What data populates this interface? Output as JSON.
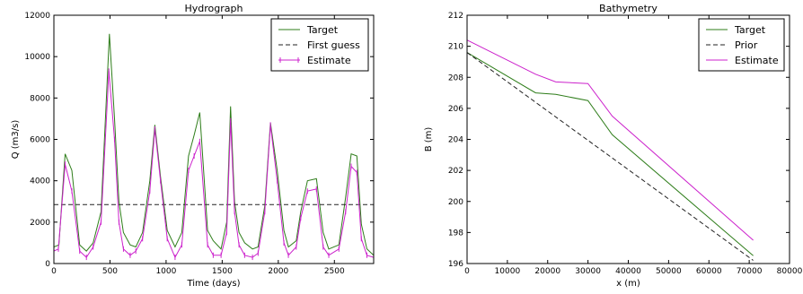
{
  "chart_data": [
    {
      "type": "line",
      "title": "Hydrograph",
      "xlabel": "Time (days)",
      "ylabel": "Q (m3/s)",
      "xlim": [
        0,
        2850
      ],
      "ylim": [
        0,
        12000
      ],
      "xticks": [
        0,
        500,
        1000,
        1500,
        2000,
        2500
      ],
      "yticks": [
        0,
        2000,
        4000,
        6000,
        8000,
        10000,
        12000
      ],
      "legend_position": "top-right",
      "grid": false,
      "series": [
        {
          "name": "Target",
          "color": "#2e7d1a",
          "style": "solid",
          "marker": "none",
          "x": [
            0,
            45,
            100,
            160,
            230,
            290,
            350,
            420,
            495,
            540,
            580,
            620,
            680,
            730,
            790,
            855,
            900,
            950,
            1010,
            1080,
            1140,
            1200,
            1250,
            1300,
            1370,
            1420,
            1490,
            1540,
            1575,
            1610,
            1650,
            1700,
            1770,
            1820,
            1880,
            1930,
            1990,
            2050,
            2090,
            2160,
            2200,
            2260,
            2340,
            2400,
            2450,
            2540,
            2600,
            2650,
            2700,
            2740,
            2790,
            2850
          ],
          "y": [
            800,
            900,
            5300,
            4500,
            900,
            600,
            1000,
            2500,
            11100,
            7000,
            3000,
            1500,
            900,
            800,
            1500,
            4000,
            6700,
            4200,
            1600,
            800,
            1500,
            5200,
            6200,
            7300,
            1600,
            1100,
            700,
            2000,
            7600,
            3000,
            1500,
            1000,
            700,
            800,
            2800,
            6800,
            4500,
            1600,
            800,
            1100,
            2500,
            4000,
            4100,
            1500,
            700,
            900,
            3200,
            5300,
            5200,
            1900,
            700,
            400
          ]
        },
        {
          "name": "First guess",
          "color": "#222222",
          "style": "dashed",
          "marker": "none",
          "x": [
            0,
            2850
          ],
          "y": [
            2850,
            2850
          ]
        },
        {
          "name": "Estimate",
          "color": "#cc22cc",
          "style": "solid",
          "marker": "vline",
          "x": [
            0,
            40,
            100,
            160,
            230,
            290,
            350,
            420,
            490,
            540,
            580,
            620,
            680,
            730,
            790,
            855,
            900,
            950,
            1010,
            1080,
            1140,
            1200,
            1250,
            1300,
            1370,
            1420,
            1490,
            1540,
            1575,
            1610,
            1650,
            1700,
            1770,
            1820,
            1880,
            1930,
            1990,
            2050,
            2090,
            2160,
            2200,
            2260,
            2340,
            2400,
            2450,
            2540,
            2600,
            2650,
            2700,
            2740,
            2790,
            2850
          ],
          "y": [
            600,
            700,
            4800,
            3500,
            600,
            300,
            800,
            2000,
            9300,
            6000,
            2000,
            700,
            400,
            600,
            1200,
            3500,
            6500,
            4000,
            1200,
            300,
            900,
            4500,
            5200,
            5900,
            900,
            400,
            400,
            1500,
            6900,
            2500,
            900,
            400,
            300,
            500,
            2500,
            6700,
            4000,
            1000,
            400,
            800,
            2200,
            3500,
            3600,
            800,
            400,
            700,
            2500,
            4700,
            4400,
            1200,
            400,
            300
          ]
        }
      ]
    },
    {
      "type": "line",
      "title": "Bathymetry",
      "xlabel": "x (m)",
      "ylabel": "B (m)",
      "xlim": [
        0,
        80000
      ],
      "ylim": [
        196,
        212
      ],
      "xticks": [
        0,
        10000,
        20000,
        30000,
        40000,
        50000,
        60000,
        70000,
        80000
      ],
      "yticks": [
        196,
        198,
        200,
        202,
        204,
        206,
        208,
        210,
        212
      ],
      "legend_position": "top-right",
      "grid": false,
      "series": [
        {
          "name": "Target",
          "color": "#2e7d1a",
          "style": "solid",
          "marker": "none",
          "x": [
            0,
            17000,
            22000,
            30000,
            36000,
            71000
          ],
          "y": [
            209.6,
            207.0,
            206.9,
            206.5,
            204.3,
            196.5
          ]
        },
        {
          "name": "Prior",
          "color": "#222222",
          "style": "dashed",
          "marker": "none",
          "x": [
            0,
            71000
          ],
          "y": [
            209.6,
            196.2
          ]
        },
        {
          "name": "Estimate",
          "color": "#cc22cc",
          "style": "solid",
          "marker": "none",
          "x": [
            0,
            17000,
            22000,
            30000,
            36000,
            71000
          ],
          "y": [
            210.4,
            208.2,
            207.7,
            207.6,
            205.5,
            197.5
          ]
        }
      ]
    }
  ]
}
